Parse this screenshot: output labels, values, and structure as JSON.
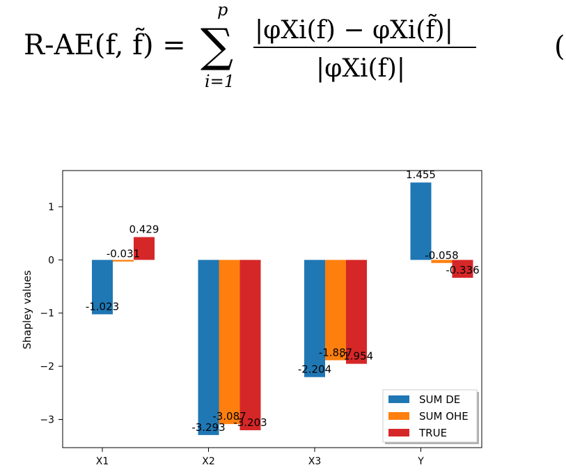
{
  "equation": {
    "lhs": "R-AE(f, f̃) =",
    "sum_upper": "p",
    "sum_lower": "i=1",
    "numerator": "|φXi(f) − φXi(f̃)|",
    "denominator": "|φXi(f)|",
    "eq_number": "("
  },
  "chart_data": {
    "type": "bar",
    "categories": [
      "X1",
      "X2",
      "X3",
      "Y"
    ],
    "series": [
      {
        "name": "SUM DE",
        "values": [
          -1.023,
          -3.293,
          -2.204,
          1.455
        ],
        "color": "#1f77b4"
      },
      {
        "name": "SUM OHE",
        "values": [
          -0.031,
          -3.087,
          -1.887,
          -0.058
        ],
        "color": "#ff7f0e"
      },
      {
        "name": "TRUE",
        "values": [
          0.429,
          -3.203,
          -1.954,
          -0.336
        ],
        "color": "#d62728"
      }
    ],
    "data_labels": [
      [
        "-1.023",
        "-3.293",
        "-2.204",
        "1.455"
      ],
      [
        "-0.031",
        "-3.087",
        "-1.887",
        "-0.058"
      ],
      [
        "0.429",
        "-3.203",
        "-1.954",
        "-0.336"
      ]
    ],
    "ylabel": "Shapley values",
    "xlabel": "",
    "ylim": [
      -3.53,
      1.68
    ],
    "yticks": [
      1,
      0,
      -1,
      -2,
      -3
    ],
    "ytick_labels": [
      "1",
      "0",
      "−1",
      "−2",
      "−3"
    ],
    "legend_position": "lower-right",
    "grid": false
  }
}
